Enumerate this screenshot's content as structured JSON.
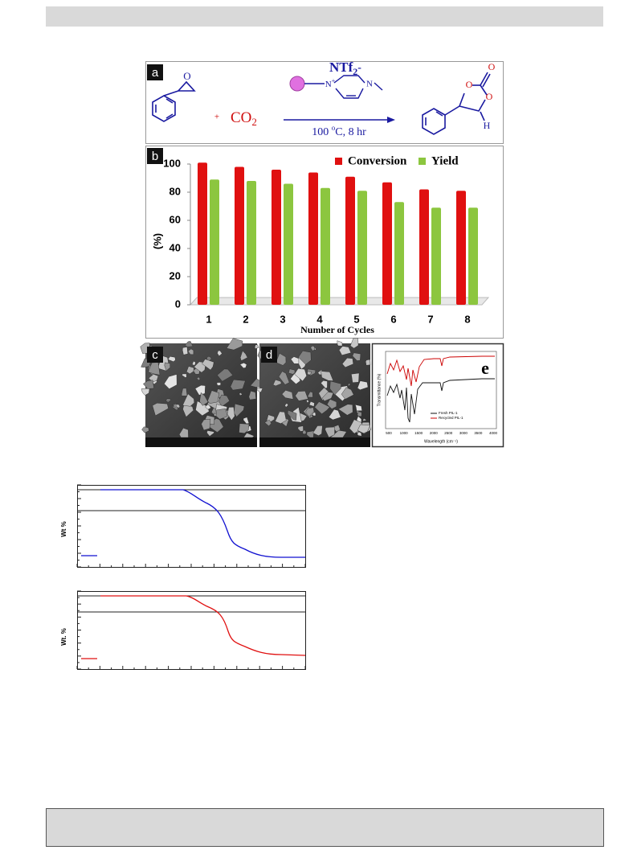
{
  "panel_a": {
    "label": "a",
    "epoxide_o": "O",
    "plus": "+",
    "reagent": "CO",
    "reagent_subscript": "2",
    "anion": "NTf",
    "anion_subscript": "2",
    "anion_charge": "-",
    "n1": "N",
    "n1_charge": "+",
    "n2": "N",
    "conditions_temp": "100 ",
    "conditions_degree": "o",
    "conditions_rest": "C, 8 hr",
    "carbonyl_o": "O",
    "ring_o1": "O",
    "ring_o2": "O",
    "h": "H"
  },
  "chart_data": {
    "type": "bar",
    "label": "b",
    "x_label": "Number of Cycles",
    "y_label": "(%)",
    "categories": [
      "1",
      "2",
      "3",
      "4",
      "5",
      "6",
      "7",
      "8"
    ],
    "series": [
      {
        "name": "Conversion",
        "color": "#e01010",
        "values": [
          101,
          98,
          96,
          94,
          91,
          87,
          82,
          81
        ]
      },
      {
        "name": "Yield",
        "color": "#8cc63f",
        "values": [
          89,
          88,
          86,
          83,
          81,
          73,
          69,
          69
        ]
      }
    ],
    "ylim": [
      0,
      100
    ],
    "yticks": [
      0,
      20,
      40,
      60,
      80,
      100
    ]
  },
  "panel_c": {
    "label": "c"
  },
  "panel_d": {
    "label": "d"
  },
  "panel_e": {
    "label": "e",
    "y_label": "Transmittance (%)",
    "x_label": "Wavelength (cm⁻¹)",
    "legend": [
      "Fresh PIL-1",
      "Recycled PIL-1"
    ],
    "x_tick_labels": [
      "500",
      "1000",
      "1500",
      "2000",
      "2500",
      "3000",
      "3500",
      "4000"
    ]
  },
  "tga": [
    {
      "y_label": "Wt %"
    },
    {
      "y_label": "Wt. %"
    }
  ]
}
